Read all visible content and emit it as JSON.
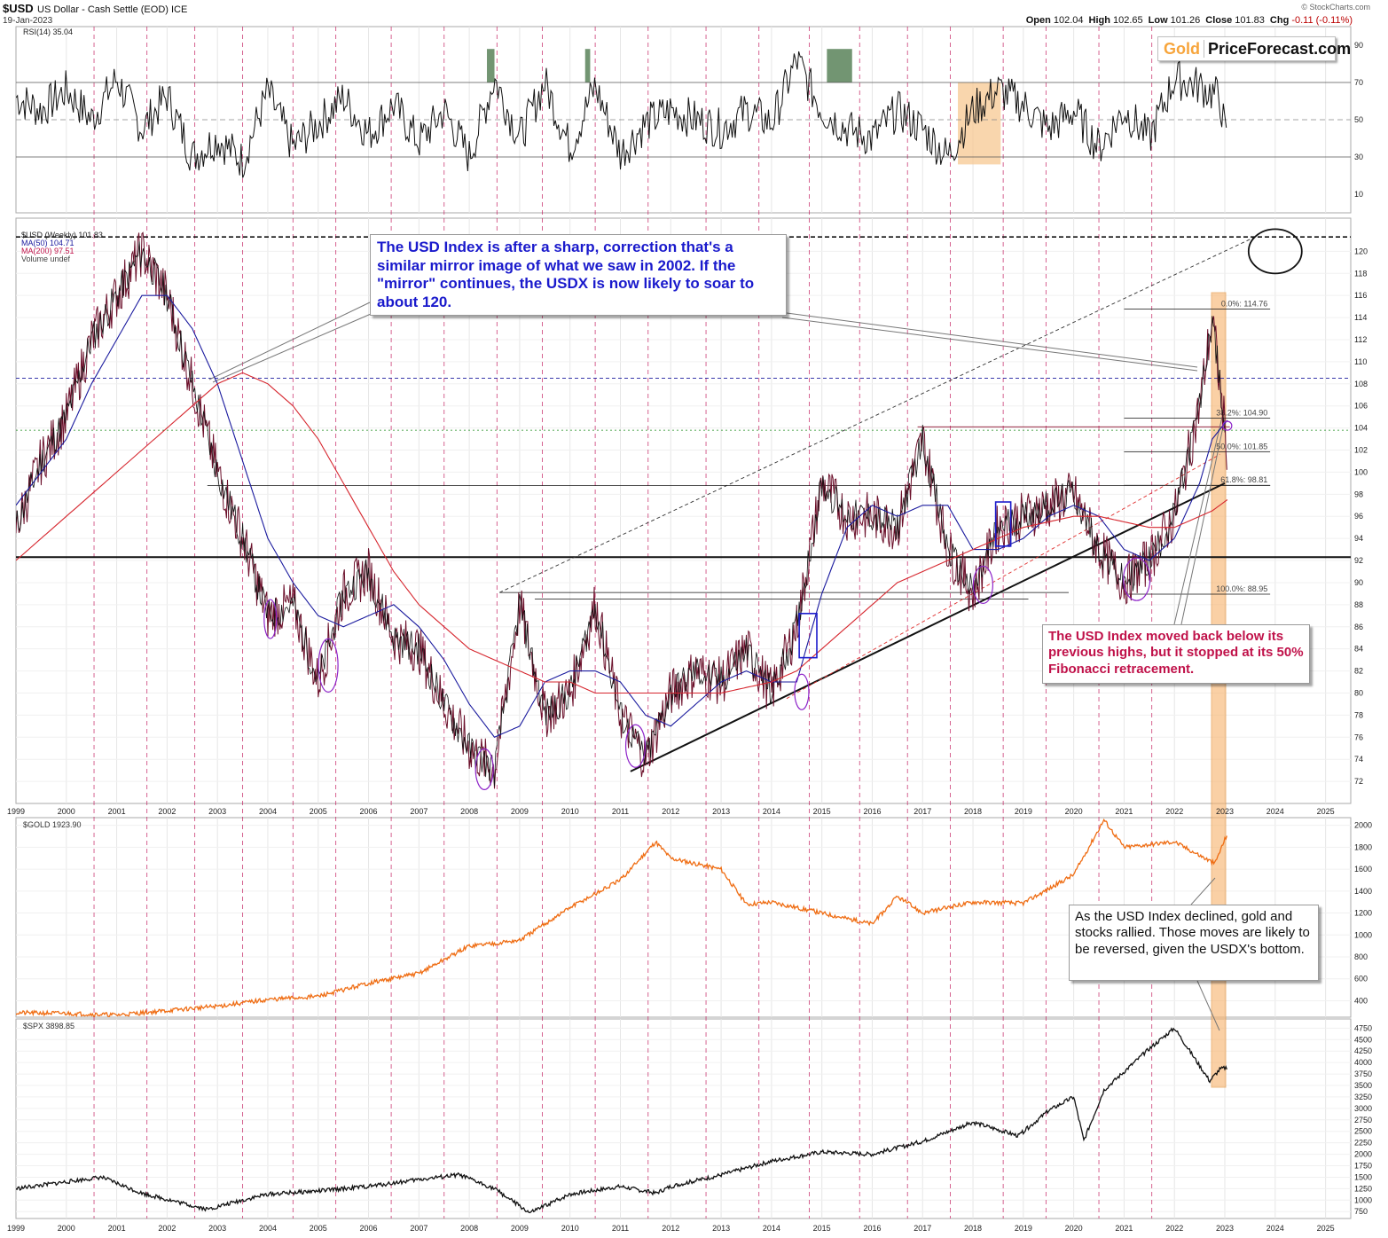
{
  "header": {
    "symbol": "$USD",
    "description": "US Dollar - Cash Settle (EOD) ICE",
    "date": "19-Jan-2023",
    "source": "© StockCharts.com",
    "open_label": "Open",
    "open": "102.04",
    "high_label": "High",
    "high": "102.65",
    "low_label": "Low",
    "low": "101.26",
    "close_label": "Close",
    "close": "101.83",
    "chg_label": "Chg",
    "chg": "-0.11 (-0.11%)"
  },
  "logo": {
    "part1": "Gold",
    "part2": "PriceForecast.com"
  },
  "annotations": {
    "mirror": "The USD Index is after a sharp, correction that's a similar mirror image of what we saw in 2002. If the \"mirror\" continues, the USDX is now likely to soar to about 120.",
    "fib": "The USD Index moved back below its previous highs, but it stopped at its 50% Fibonacci retracement.",
    "gold": "As the USD Index declined, gold and stocks rallied. Those moves are likely to be reversed, given the USDX's bottom."
  },
  "chart_data": [
    {
      "type": "line",
      "panel": "rsi",
      "legend": [
        "RSI(14) 35.04"
      ],
      "ylim": [
        0,
        100
      ],
      "yticks": [
        10,
        30,
        50,
        70,
        90
      ],
      "reference_lines": [
        30,
        50,
        70
      ],
      "x": [
        1999.0,
        1999.5,
        2000.0,
        2000.5,
        2001.0,
        2001.5,
        2002.0,
        2002.5,
        2003.0,
        2003.5,
        2004.0,
        2004.5,
        2005.0,
        2005.5,
        2006.0,
        2006.5,
        2007.0,
        2007.5,
        2008.0,
        2008.5,
        2009.0,
        2009.5,
        2010.0,
        2010.5,
        2011.0,
        2011.5,
        2012.0,
        2012.5,
        2013.0,
        2013.5,
        2014.0,
        2014.5,
        2015.0,
        2015.5,
        2016.0,
        2016.5,
        2017.0,
        2017.5,
        2018.0,
        2018.5,
        2019.0,
        2019.5,
        2020.0,
        2020.5,
        2021.0,
        2021.5,
        2022.0,
        2022.5,
        2022.9,
        2023.05
      ],
      "values": [
        62,
        55,
        66,
        50,
        72,
        45,
        63,
        30,
        40,
        28,
        65,
        35,
        48,
        62,
        42,
        58,
        38,
        55,
        30,
        72,
        40,
        70,
        35,
        68,
        32,
        48,
        55,
        50,
        45,
        55,
        48,
        82,
        55,
        45,
        40,
        55,
        45,
        30,
        55,
        66,
        58,
        45,
        55,
        35,
        55,
        40,
        72,
        68,
        62,
        35
      ]
    },
    {
      "type": "line",
      "panel": "usd",
      "legend": [
        "$USD (Weekly) 101.83",
        "MA(50) 104.71",
        "MA(200) 97.51",
        "Volume undef"
      ],
      "ylim": [
        70,
        123
      ],
      "yticks": [
        72,
        74,
        76,
        78,
        80,
        82,
        84,
        86,
        88,
        90,
        92,
        94,
        96,
        98,
        100,
        102,
        104,
        106,
        108,
        110,
        112,
        114,
        116,
        118,
        120
      ],
      "xticks": [
        "1999",
        "2000",
        "2001",
        "2002",
        "2003",
        "2004",
        "2005",
        "2006",
        "2007",
        "2008",
        "2009",
        "2010",
        "2011",
        "2012",
        "2013",
        "2014",
        "2015",
        "2016",
        "2017",
        "2018",
        "2019",
        "2020",
        "2021",
        "2022",
        "2023",
        "2024",
        "2025"
      ],
      "fib_labels": [
        "0.0%: 114.76",
        "38.2%: 104.90",
        "50.0%: 101.85",
        "61.8%: 98.81",
        "100.0%: 88.95"
      ],
      "x": [
        1999.0,
        1999.5,
        2000.0,
        2000.5,
        2001.0,
        2001.5,
        2002.0,
        2002.5,
        2003.0,
        2003.5,
        2004.0,
        2004.5,
        2005.0,
        2005.5,
        2006.0,
        2006.5,
        2007.0,
        2007.5,
        2008.0,
        2008.5,
        2009.0,
        2009.5,
        2010.0,
        2010.5,
        2011.0,
        2011.5,
        2012.0,
        2012.5,
        2013.0,
        2013.5,
        2014.0,
        2014.5,
        2015.0,
        2015.5,
        2016.0,
        2016.5,
        2017.0,
        2017.5,
        2018.0,
        2018.5,
        2019.0,
        2019.5,
        2020.0,
        2020.5,
        2021.0,
        2021.5,
        2022.0,
        2022.5,
        2022.75,
        2023.05
      ],
      "values": [
        95,
        101,
        105,
        112,
        116,
        120,
        116,
        108,
        100,
        94,
        87,
        88,
        81,
        89,
        91,
        85,
        84,
        79,
        75,
        73,
        88,
        78,
        80,
        88,
        78,
        74,
        80,
        82,
        81,
        84,
        80,
        86,
        99,
        96,
        96,
        95,
        103,
        93,
        89,
        95,
        96,
        97,
        98,
        93,
        90,
        92,
        96,
        106,
        114,
        102
      ],
      "ma50": [
        97,
        100,
        103,
        108,
        112,
        116,
        116,
        113,
        108,
        101,
        94,
        90,
        87,
        86,
        87,
        88,
        86,
        83,
        79,
        76,
        77,
        81,
        82,
        82,
        81,
        78,
        77,
        79,
        81,
        82,
        81,
        81,
        89,
        95,
        97,
        96,
        97,
        97,
        93,
        93,
        94,
        96,
        97,
        96,
        93,
        92,
        94,
        99,
        103,
        104.7
      ],
      "ma200": [
        92,
        94,
        96,
        98,
        100,
        102,
        104,
        106,
        108,
        109,
        108,
        106,
        103,
        99,
        95,
        91,
        88,
        86,
        84,
        83,
        82,
        81,
        81,
        80,
        80,
        80,
        80,
        80,
        80,
        80.5,
        81,
        82,
        84,
        86,
        88,
        90,
        91,
        92,
        93,
        94,
        95,
        95.5,
        96,
        96,
        95.5,
        95,
        95,
        96,
        96.5,
        97.5
      ]
    },
    {
      "type": "line",
      "panel": "gold",
      "legend": [
        "$GOLD 1923.90"
      ],
      "ylim": [
        250,
        2070
      ],
      "yticks": [
        400,
        600,
        800,
        1000,
        1200,
        1400,
        1600,
        1800,
        2000
      ],
      "x": [
        1999.0,
        2000.0,
        2001.0,
        2002.0,
        2003.0,
        2004.0,
        2005.0,
        2006.0,
        2007.0,
        2008.0,
        2009.0,
        2010.0,
        2011.0,
        2011.7,
        2012.0,
        2013.0,
        2013.5,
        2014.0,
        2015.0,
        2016.0,
        2016.5,
        2017.0,
        2018.0,
        2019.0,
        2019.5,
        2020.0,
        2020.6,
        2021.0,
        2022.0,
        2022.8,
        2023.05
      ],
      "values": [
        290,
        285,
        270,
        310,
        350,
        410,
        440,
        560,
        650,
        900,
        950,
        1250,
        1500,
        1850,
        1700,
        1600,
        1280,
        1300,
        1200,
        1100,
        1350,
        1200,
        1300,
        1290,
        1420,
        1550,
        2050,
        1800,
        1850,
        1650,
        1923.9
      ]
    },
    {
      "type": "line",
      "panel": "spx",
      "legend": [
        "$SPX 3898.85"
      ],
      "ylim": [
        600,
        4950
      ],
      "yticks": [
        750,
        1000,
        1250,
        1500,
        1750,
        2000,
        2250,
        2500,
        2750,
        3000,
        3250,
        3500,
        3750,
        4000,
        4250,
        4500,
        4750
      ],
      "xticks": [
        "1999",
        "2000",
        "2001",
        "2002",
        "2003",
        "2004",
        "2005",
        "2006",
        "2007",
        "2008",
        "2009",
        "2010",
        "2011",
        "2012",
        "2013",
        "2014",
        "2015",
        "2016",
        "2017",
        "2018",
        "2019",
        "2020",
        "2021",
        "2022",
        "2023",
        "2024",
        "2025"
      ],
      "x": [
        1999.0,
        2000.0,
        2000.7,
        2001.5,
        2002.8,
        2003.5,
        2004.0,
        2005.0,
        2006.0,
        2007.0,
        2007.8,
        2008.5,
        2009.2,
        2010.0,
        2011.0,
        2011.7,
        2012.0,
        2013.0,
        2014.0,
        2015.0,
        2016.0,
        2017.0,
        2018.0,
        2018.9,
        2019.5,
        2020.0,
        2020.2,
        2020.6,
        2021.0,
        2021.5,
        2022.0,
        2022.7,
        2022.9,
        2023.05
      ],
      "values": [
        1250,
        1400,
        1500,
        1150,
        800,
        1000,
        1130,
        1200,
        1300,
        1450,
        1550,
        1250,
        720,
        1130,
        1300,
        1150,
        1300,
        1550,
        1850,
        2050,
        2000,
        2280,
        2700,
        2400,
        2950,
        3250,
        2300,
        3400,
        3800,
        4300,
        4750,
        3600,
        3850,
        3898.85
      ]
    }
  ]
}
